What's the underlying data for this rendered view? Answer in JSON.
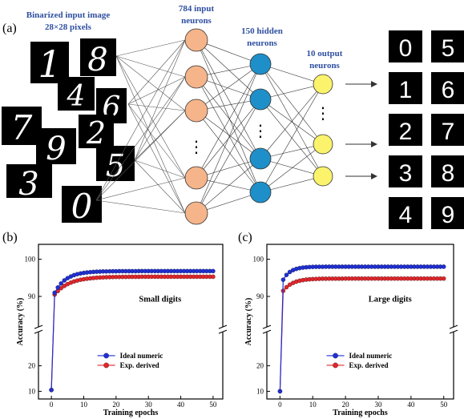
{
  "panel_a": {
    "label": "(a)",
    "input_caption": [
      "Binarized input image",
      "28×28 pixels"
    ],
    "input_layer_caption": [
      "784 input",
      "neurons"
    ],
    "hidden_layer_caption": [
      "150 hidden",
      "neurons"
    ],
    "output_layer_caption": [
      "10 output",
      "neurons"
    ],
    "input_digits": [
      "1",
      "8",
      "4",
      "6",
      "7",
      "2",
      "9",
      "5",
      "3",
      "0"
    ],
    "output_digits": [
      "0",
      "5",
      "1",
      "6",
      "2",
      "7",
      "3",
      "8",
      "4",
      "9"
    ],
    "ellipsis": "⋮",
    "colors": {
      "input": "#f5b48a",
      "hidden": "#1e8fc9",
      "output": "#fbf36b"
    }
  },
  "panel_b": {
    "label": "(b)"
  },
  "panel_c": {
    "label": "(c)"
  },
  "chart_data": [
    {
      "type": "line",
      "panel": "(b)",
      "annotation": "Small digits",
      "xlabel": "Training epochs",
      "ylabel": "Accuracy (%)",
      "xlim": [
        -4,
        53
      ],
      "xticks": [
        0,
        10,
        20,
        30,
        40,
        50
      ],
      "yticks": [
        10,
        20,
        90,
        100
      ],
      "broken_axis": {
        "lower": [
          7,
          33
        ],
        "upper": [
          82,
          104
        ]
      },
      "legend_position": "lower-center",
      "series": [
        {
          "name": "Ideal numeric",
          "color": "#1f2fd6",
          "start": [
            0,
            10.5
          ],
          "first": 91,
          "plateau": 96.8,
          "rate": 0.28
        },
        {
          "name": "Exp. derived",
          "color": "#e3262b",
          "start": [
            0,
            10.5
          ],
          "first": 90.5,
          "plateau": 95.3,
          "rate": 0.22
        }
      ]
    },
    {
      "type": "line",
      "panel": "(c)",
      "annotation": "Large digits",
      "xlabel": "Training epochs",
      "ylabel": "Accuracy (%)",
      "xlim": [
        -4,
        53
      ],
      "xticks": [
        0,
        10,
        20,
        30,
        40,
        50
      ],
      "yticks": [
        10,
        20,
        90,
        100
      ],
      "broken_axis": {
        "lower": [
          7,
          33
        ],
        "upper": [
          82,
          104
        ]
      },
      "legend_position": "lower-center",
      "series": [
        {
          "name": "Ideal numeric",
          "color": "#1f2fd6",
          "start": [
            0,
            10
          ],
          "first": 94.5,
          "plateau": 98.0,
          "rate": 0.45
        },
        {
          "name": "Exp. derived",
          "color": "#e3262b",
          "start": [
            0,
            10
          ],
          "first": 91.5,
          "plateau": 94.8,
          "rate": 0.35
        }
      ]
    }
  ]
}
